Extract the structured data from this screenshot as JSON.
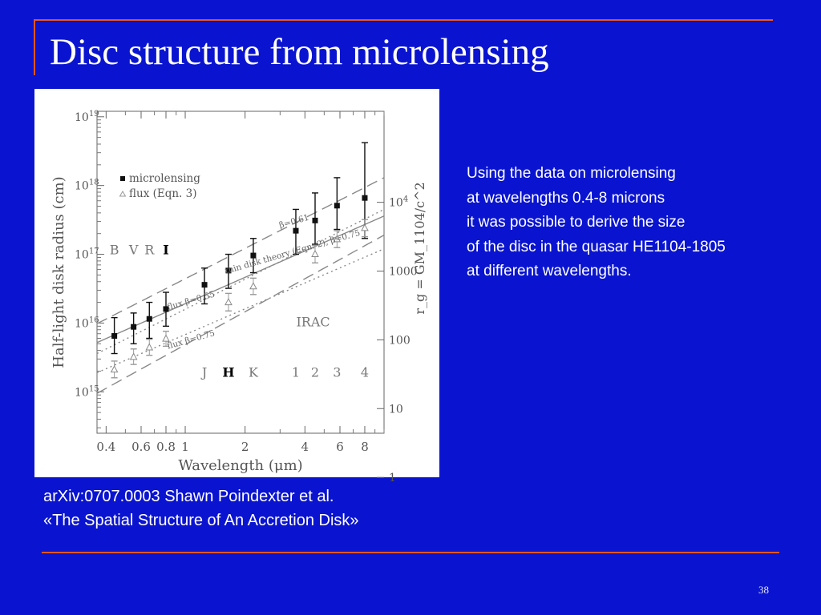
{
  "slide": {
    "title": "Disc structure from microlensing",
    "description": [
      "Using the data on microlensing",
      "at wavelengths 0.4-8 microns",
      "it was possible to derive the size",
      "of the disc in the quasar HE1104-1805",
      "at different wavelengths."
    ],
    "citation": [
      "arXiv:0707.0003 Shawn Poindexter et al.",
      "«The Spatial Structure of An Accretion Disk»"
    ],
    "page_number": "38"
  },
  "colors": {
    "background": "#0a14d0",
    "accent_rule": "#e8561e",
    "text": "#ffffff"
  },
  "chart_data": {
    "type": "scatter",
    "xlabel": "Wavelength (μm)",
    "ylabel": "Half-light disk radius (cm)",
    "y2label": "r_g = GM_1104/c^2",
    "xscale": "log",
    "yscale": "log",
    "xlim": [
      0.36,
      10
    ],
    "ylim": [
      250000000000000.0,
      1.2e+19
    ],
    "x_ticks": [
      {
        "v": 0.4,
        "label": "0.4"
      },
      {
        "v": 0.6,
        "label": "0.6"
      },
      {
        "v": 0.8,
        "label": "0.8"
      },
      {
        "v": 1,
        "label": "1"
      },
      {
        "v": 2,
        "label": "2"
      },
      {
        "v": 4,
        "label": "4"
      },
      {
        "v": 6,
        "label": "6"
      },
      {
        "v": 8,
        "label": "8"
      }
    ],
    "y_ticks": [
      {
        "v": 1000000000000000.0,
        "label": "10",
        "exp": "15"
      },
      {
        "v": 1e+16,
        "label": "10",
        "exp": "16"
      },
      {
        "v": 1e+17,
        "label": "10",
        "exp": "17"
      },
      {
        "v": 1e+18,
        "label": "10",
        "exp": "18"
      },
      {
        "v": 1e+19,
        "label": "10",
        "exp": "19"
      }
    ],
    "y2_ticks": [
      {
        "v": 1,
        "label": "1"
      },
      {
        "v": 10,
        "label": "10"
      },
      {
        "v": 100,
        "label": "100"
      },
      {
        "v": 1000,
        "label": "1000"
      },
      {
        "v": 10000,
        "label": "10",
        "exp": "4"
      }
    ],
    "y2_factor": 57000000000000.0,
    "legend_position": "top-left",
    "series": [
      {
        "name": "microlensing",
        "marker": "square",
        "points": [
          {
            "x": 0.44,
            "y": 6500000000000000.0,
            "lo": 3600000000000000.0,
            "hi": 1.2e+16
          },
          {
            "x": 0.55,
            "y": 8800000000000000.0,
            "lo": 5000000000000000.0,
            "hi": 1.4e+16
          },
          {
            "x": 0.66,
            "y": 1.15e+16,
            "lo": 6000000000000000.0,
            "hi": 2e+16
          },
          {
            "x": 0.8,
            "y": 1.6e+16,
            "lo": 9000000000000000.0,
            "hi": 2.8e+16
          },
          {
            "x": 1.25,
            "y": 3.6e+16,
            "lo": 1.9e+16,
            "hi": 6.3e+16
          },
          {
            "x": 1.65,
            "y": 5.8e+16,
            "lo": 3.2e+16,
            "hi": 1e+17
          },
          {
            "x": 2.2,
            "y": 9.6e+16,
            "lo": 5.4e+16,
            "hi": 1.7e+17
          },
          {
            "x": 3.6,
            "y": 2.2e+17,
            "lo": 1e+17,
            "hi": 4.5e+17
          },
          {
            "x": 4.5,
            "y": 3.1e+17,
            "lo": 1.4e+17,
            "hi": 7.8e+17
          },
          {
            "x": 5.8,
            "y": 5.1e+17,
            "lo": 2.3e+17,
            "hi": 1.3e+18
          },
          {
            "x": 8.0,
            "y": 6.6e+17,
            "lo": 1.7e+17,
            "hi": 4.2e+18
          }
        ]
      },
      {
        "name": "flux (Eqn. 3)",
        "marker": "triangle",
        "points": [
          {
            "x": 0.44,
            "y": 2100000000000000.0,
            "lo": 1600000000000000.0,
            "hi": 2800000000000000.0
          },
          {
            "x": 0.55,
            "y": 3200000000000000.0,
            "lo": 2500000000000000.0,
            "hi": 4200000000000000.0
          },
          {
            "x": 0.66,
            "y": 4400000000000000.0,
            "lo": 3400000000000000.0,
            "hi": 5800000000000000.0
          },
          {
            "x": 0.8,
            "y": 5900000000000000.0,
            "lo": 4600000000000000.0,
            "hi": 7600000000000000.0
          },
          {
            "x": 1.65,
            "y": 2e+16,
            "lo": 1.5e+16,
            "hi": 2.7e+16
          },
          {
            "x": 2.2,
            "y": 3.4e+16,
            "lo": 2.6e+16,
            "hi": 4.5e+16
          },
          {
            "x": 4.5,
            "y": 1e+17,
            "lo": 7.5e+16,
            "hi": 1.35e+17
          },
          {
            "x": 5.8,
            "y": 1.65e+17,
            "lo": 1.25e+17,
            "hi": 2.2e+17
          },
          {
            "x": 8.0,
            "y": 2.4e+17,
            "lo": 1.8e+17,
            "hi": 3.2e+17
          }
        ]
      }
    ],
    "fit_lines": [
      {
        "label": "β=0.61",
        "style": "dashed",
        "from": [
          0.36,
          9800000000000000.0
        ],
        "to": [
          10,
          1.3e+18
        ]
      },
      {
        "label": "thin disk theory (Eqn. 2), β=0.75",
        "style": "solid",
        "from": [
          0.36,
          5200000000000000.0
        ],
        "to": [
          10,
          3.6e+17
        ]
      },
      {
        "label": "",
        "style": "dotted",
        "from": [
          0.36,
          3600000000000000.0
        ],
        "to": [
          10,
          4.5e+17
        ]
      },
      {
        "label": "flux β=0.55",
        "style": "dotted",
        "from": [
          0.36,
          1900000000000000.0
        ],
        "to": [
          10,
          1.2e+17
        ]
      },
      {
        "label": "flux β=0.75",
        "style": "dashed",
        "from": [
          0.36,
          950000000000000.0
        ],
        "to": [
          10,
          1.9e+17
        ]
      }
    ],
    "band_labels": [
      {
        "text": "B",
        "x": 0.44,
        "y": 1e+17
      },
      {
        "text": "V",
        "x": 0.55,
        "y": 1e+17
      },
      {
        "text": "R",
        "x": 0.66,
        "y": 1e+17
      },
      {
        "text": "I",
        "x": 0.8,
        "y": 1e+17
      },
      {
        "text": "J",
        "x": 1.25,
        "y": 1650000000000000.0
      },
      {
        "text": "H",
        "x": 1.65,
        "y": 1650000000000000.0
      },
      {
        "text": "K",
        "x": 2.2,
        "y": 1650000000000000.0
      },
      {
        "text": "IRAC",
        "x": 4.4,
        "y": 9000000000000000.0
      },
      {
        "text": "1",
        "x": 3.6,
        "y": 1650000000000000.0
      },
      {
        "text": "2",
        "x": 4.5,
        "y": 1650000000000000.0
      },
      {
        "text": "3",
        "x": 5.8,
        "y": 1650000000000000.0
      },
      {
        "text": "4",
        "x": 8.0,
        "y": 1650000000000000.0
      }
    ],
    "line_labels": [
      {
        "text": "β=0.61",
        "x": 3.0,
        "y": 2.4e+17
      },
      {
        "text": "thin disk theory (Eqn. 2), β=0.75",
        "x": 1.6,
        "y": 5.2e+16
      },
      {
        "text": "flux β=0.55",
        "x": 0.82,
        "y": 1.55e+16
      },
      {
        "text": "flux β=0.75",
        "x": 0.82,
        "y": 4200000000000000.0
      }
    ]
  }
}
